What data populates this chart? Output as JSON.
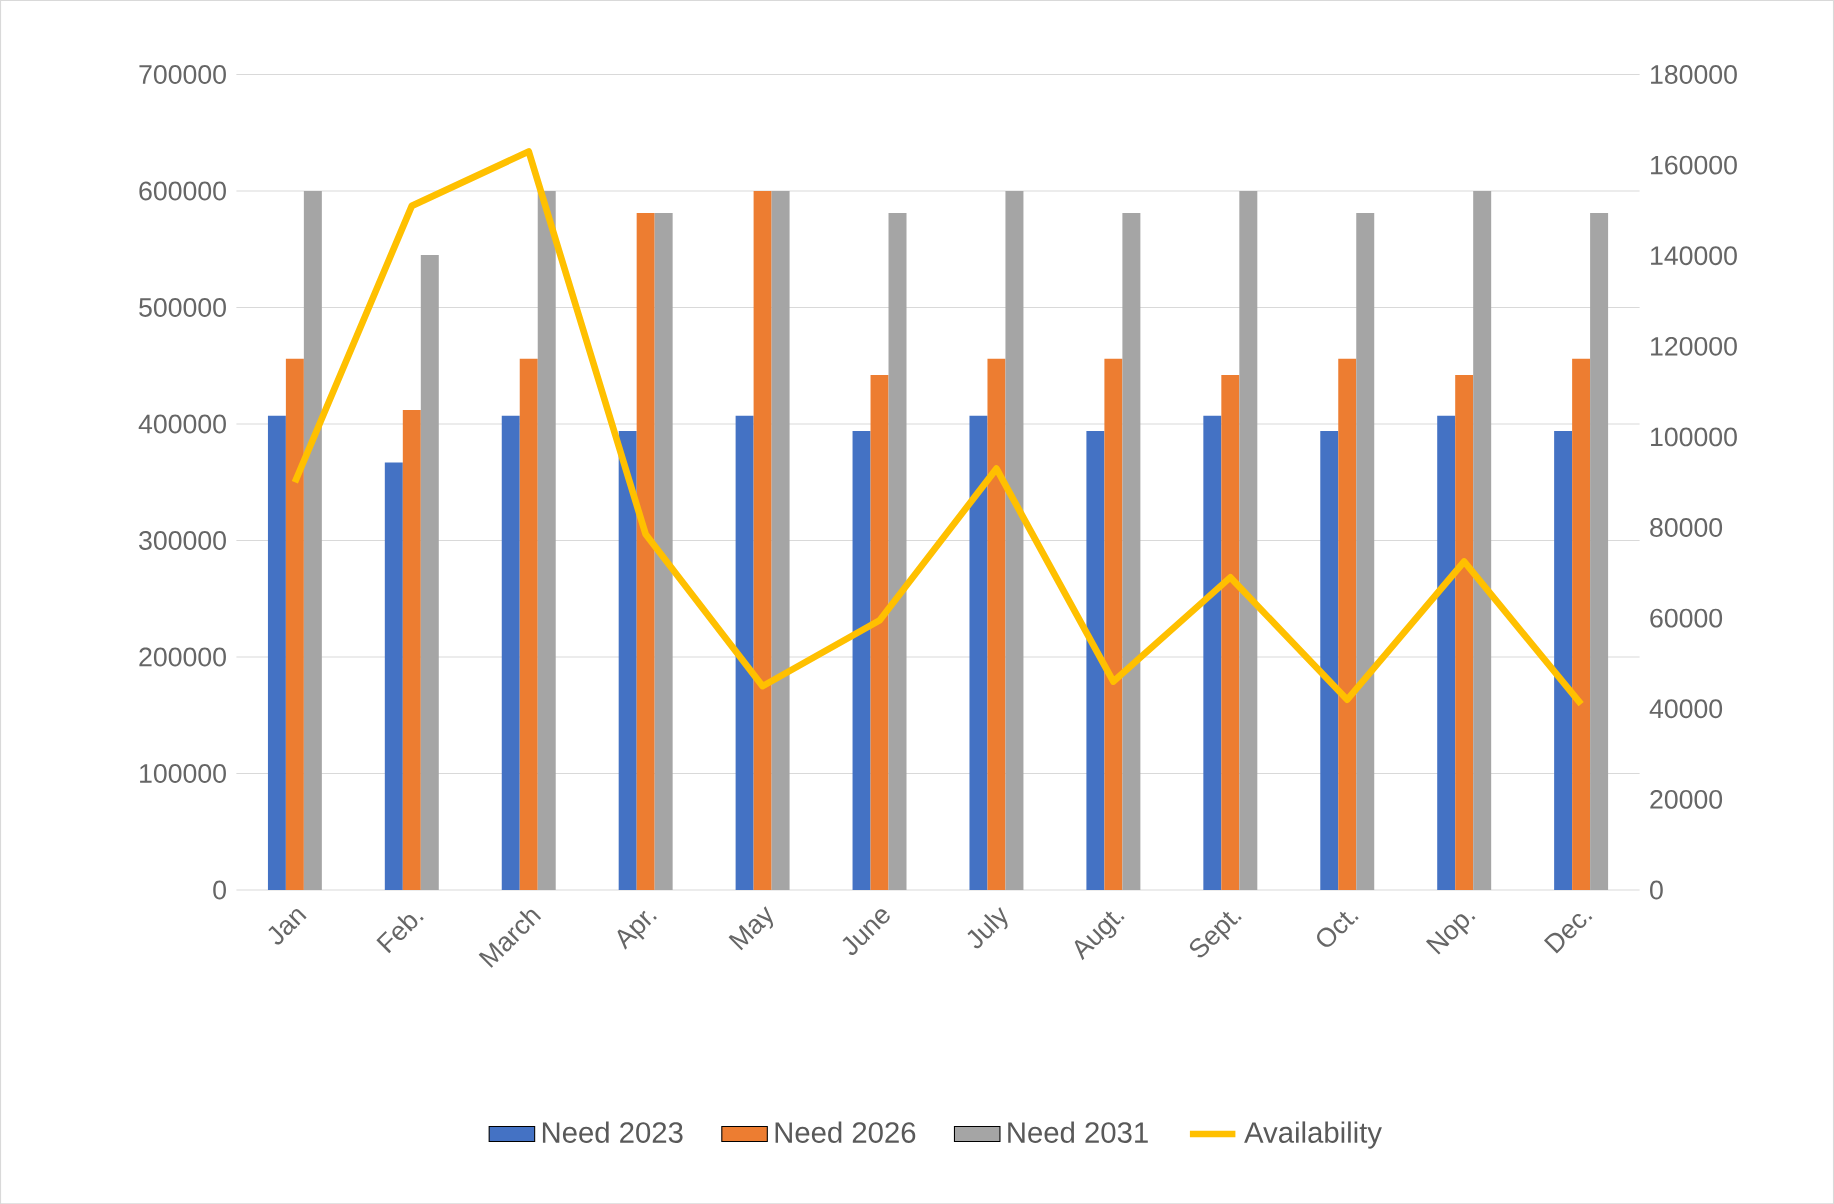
{
  "chart_data": {
    "type": "bar",
    "categories": [
      "Jan",
      "Feb.",
      "March",
      "Apr.",
      "May",
      "June",
      "July",
      "Augt.",
      "Sept.",
      "Oct.",
      "Nop.",
      "Dec."
    ],
    "series": [
      {
        "name": "Need 2023",
        "color": "#4472c4",
        "values": [
          407000,
          367000,
          407000,
          394000,
          407000,
          394000,
          407000,
          394000,
          407000,
          394000,
          407000,
          394000
        ]
      },
      {
        "name": "Need 2026",
        "color": "#ed7d31",
        "values": [
          456000,
          412000,
          456000,
          581000,
          600000,
          442000,
          456000,
          456000,
          442000,
          456000,
          442000,
          456000
        ]
      },
      {
        "name": "Need 2031",
        "color": "#a5a5a5",
        "values": [
          600000,
          545000,
          600000,
          581000,
          600000,
          581000,
          600000,
          581000,
          600000,
          581000,
          600000,
          581000
        ]
      },
      {
        "name": "Availability",
        "color": "#ffc000",
        "type": "line",
        "axis": "y2",
        "values": [
          90000,
          151000,
          163000,
          78500,
          45000,
          59500,
          93000,
          46000,
          69000,
          42000,
          72500,
          41000
        ]
      }
    ],
    "ylim": [
      0,
      700000
    ],
    "yticks": [
      0,
      100000,
      200000,
      300000,
      400000,
      500000,
      600000,
      700000
    ],
    "y2lim": [
      0,
      180000
    ],
    "y2ticks": [
      0,
      20000,
      40000,
      60000,
      80000,
      100000,
      120000,
      140000,
      160000,
      180000
    ],
    "grid": "y",
    "legend": "bottom"
  }
}
